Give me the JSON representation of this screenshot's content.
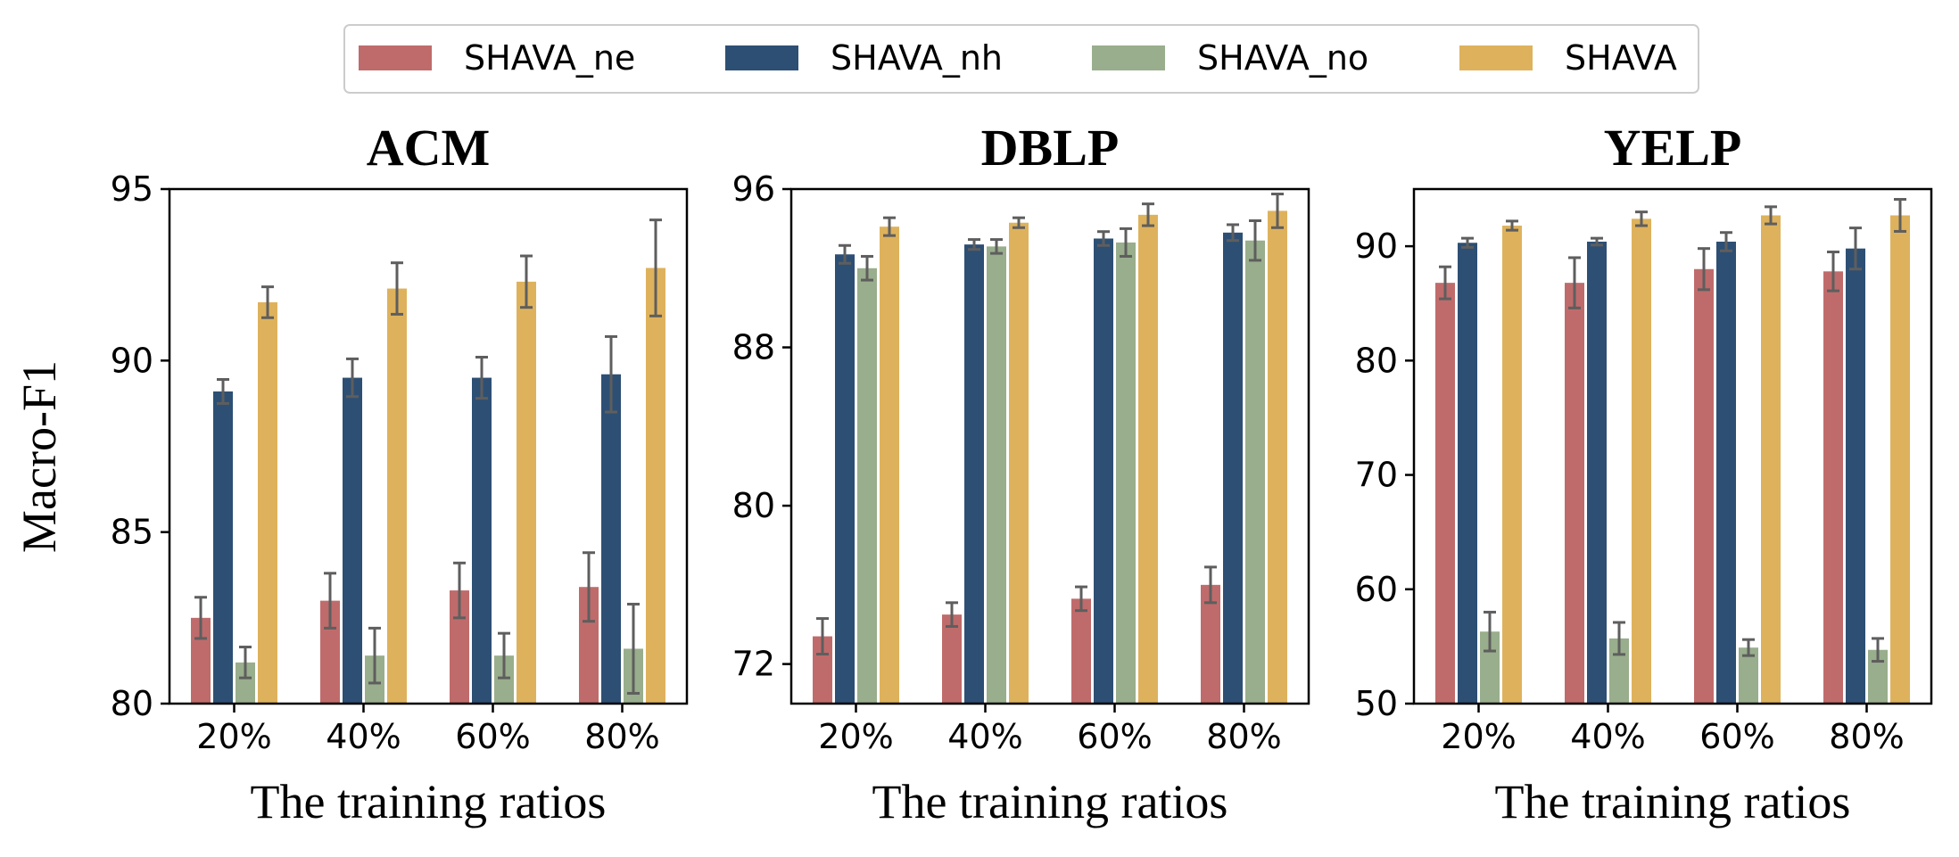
{
  "legend": [
    "SHAVA_ne",
    "SHAVA_nh",
    "SHAVA_no",
    "SHAVA"
  ],
  "colors": [
    "#c06b6b",
    "#2d4f74",
    "#99ae8c",
    "#deb25c"
  ],
  "errorbar_color": "#5e5e5e",
  "ylabel": "Macro-F1",
  "chart_data": [
    {
      "type": "bar",
      "title": "ACM",
      "xlabel": "The training ratios",
      "ylabel": "Macro-F1",
      "categories": [
        "20%",
        "40%",
        "60%",
        "80%"
      ],
      "ylim": [
        80,
        95
      ],
      "yticks": [
        80,
        85,
        90,
        95
      ],
      "series": [
        {
          "name": "SHAVA_ne",
          "values": [
            82.5,
            83.0,
            83.3,
            83.4
          ],
          "errors": [
            0.6,
            0.8,
            0.8,
            1.0
          ]
        },
        {
          "name": "SHAVA_nh",
          "values": [
            89.1,
            89.5,
            89.5,
            89.6
          ],
          "errors": [
            0.35,
            0.55,
            0.6,
            1.1
          ]
        },
        {
          "name": "SHAVA_no",
          "values": [
            81.2,
            81.4,
            81.4,
            81.6
          ],
          "errors": [
            0.45,
            0.8,
            0.65,
            1.3
          ]
        },
        {
          "name": "SHAVA",
          "values": [
            91.7,
            92.1,
            92.3,
            92.7
          ],
          "errors": [
            0.45,
            0.75,
            0.75,
            1.4
          ]
        }
      ]
    },
    {
      "type": "bar",
      "title": "DBLP",
      "xlabel": "The training ratios",
      "ylabel": "",
      "categories": [
        "20%",
        "40%",
        "60%",
        "80%"
      ],
      "ylim": [
        70,
        96
      ],
      "yticks": [
        72,
        80,
        88,
        96
      ],
      "series": [
        {
          "name": "SHAVA_ne",
          "values": [
            73.4,
            74.5,
            75.3,
            76.0
          ],
          "errors": [
            0.9,
            0.6,
            0.6,
            0.9
          ]
        },
        {
          "name": "SHAVA_nh",
          "values": [
            92.7,
            93.2,
            93.5,
            93.8
          ],
          "errors": [
            0.45,
            0.25,
            0.35,
            0.4
          ]
        },
        {
          "name": "SHAVA_no",
          "values": [
            92.0,
            93.1,
            93.3,
            93.4
          ],
          "errors": [
            0.6,
            0.35,
            0.7,
            1.0
          ]
        },
        {
          "name": "SHAVA",
          "values": [
            94.1,
            94.3,
            94.7,
            94.9
          ],
          "errors": [
            0.45,
            0.25,
            0.55,
            0.85
          ]
        }
      ]
    },
    {
      "type": "bar",
      "title": "YELP",
      "xlabel": "The training ratios",
      "ylabel": "",
      "categories": [
        "20%",
        "40%",
        "60%",
        "80%"
      ],
      "ylim": [
        50,
        95
      ],
      "yticks": [
        50,
        60,
        70,
        80,
        90
      ],
      "series": [
        {
          "name": "SHAVA_ne",
          "values": [
            86.8,
            86.8,
            88.0,
            87.8
          ],
          "errors": [
            1.4,
            2.2,
            1.8,
            1.7
          ]
        },
        {
          "name": "SHAVA_nh",
          "values": [
            90.3,
            90.4,
            90.4,
            89.8
          ],
          "errors": [
            0.4,
            0.3,
            0.8,
            1.8
          ]
        },
        {
          "name": "SHAVA_no",
          "values": [
            56.3,
            55.7,
            54.9,
            54.7
          ],
          "errors": [
            1.7,
            1.4,
            0.7,
            1.0
          ]
        },
        {
          "name": "SHAVA",
          "values": [
            91.8,
            92.4,
            92.7,
            92.7
          ],
          "errors": [
            0.4,
            0.6,
            0.75,
            1.4
          ]
        }
      ]
    }
  ]
}
